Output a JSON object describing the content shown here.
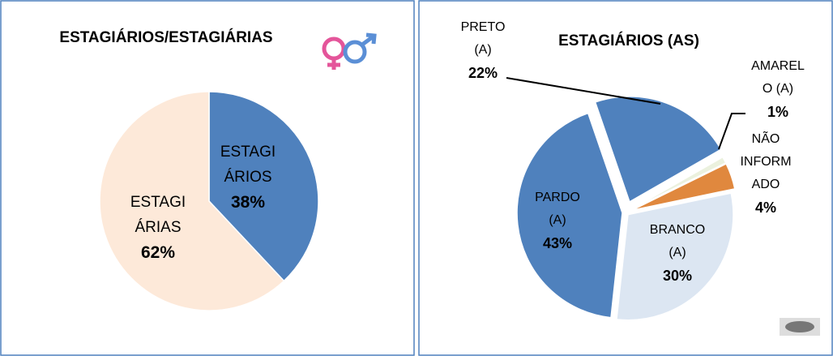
{
  "chart_data": [
    {
      "type": "pie",
      "title": "ESTAGIÁRIOS/ESTAGIÁRIAS",
      "categories": [
        "ESTAGIÁRIOS",
        "ESTAGIÁRIAS"
      ],
      "values": [
        38,
        62
      ],
      "value_labels": [
        "38%",
        "62%"
      ],
      "colors": [
        "#4f81bd",
        "#fde9d9"
      ]
    },
    {
      "type": "pie",
      "title": "ESTAGIÁRIOS (AS)",
      "categories": [
        "PRETO (A)",
        "AMARELO (A)",
        "NÃO INFORMADO",
        "BRANCO (A)",
        "PARDO (A)"
      ],
      "values": [
        22,
        1,
        4,
        30,
        43
      ],
      "value_labels": [
        "22%",
        "1%",
        "4%",
        "30%",
        "43%"
      ],
      "colors": [
        "#4f81bd",
        "#ebf1de",
        "#e0883e",
        "#dce6f2",
        "#4f81bd"
      ]
    }
  ]
}
